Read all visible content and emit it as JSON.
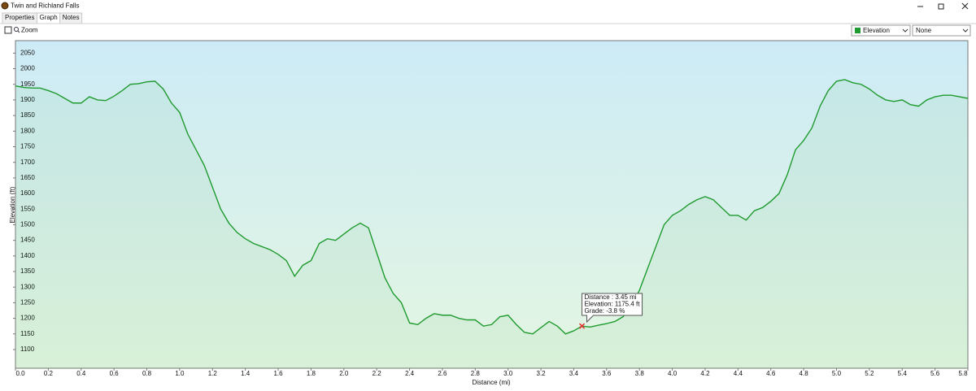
{
  "window": {
    "title": "Twin and Richland Falls",
    "tabs": [
      "Properties",
      "Graph",
      "Notes"
    ],
    "active_tab": 1
  },
  "toolbar": {
    "zoom": "Zoom",
    "series_select": "Elevation",
    "secondary_select": "None"
  },
  "chart_data": {
    "type": "line",
    "x_label": "Distance  (mi)",
    "y_label": "Elevation (ft)",
    "color": "#1f9a2e",
    "x": [
      0,
      0.05,
      0.1,
      0.15,
      0.2,
      0.25,
      0.3,
      0.35,
      0.4,
      0.45,
      0.5,
      0.55,
      0.6,
      0.65,
      0.7,
      0.75,
      0.8,
      0.85,
      0.9,
      0.95,
      1.0,
      1.05,
      1.1,
      1.15,
      1.2,
      1.25,
      1.3,
      1.35,
      1.4,
      1.45,
      1.5,
      1.55,
      1.6,
      1.65,
      1.7,
      1.75,
      1.8,
      1.85,
      1.9,
      1.95,
      2.0,
      2.05,
      2.1,
      2.15,
      2.2,
      2.25,
      2.3,
      2.35,
      2.4,
      2.45,
      2.5,
      2.55,
      2.6,
      2.65,
      2.7,
      2.75,
      2.8,
      2.85,
      2.9,
      2.95,
      3.0,
      3.05,
      3.1,
      3.15,
      3.2,
      3.25,
      3.3,
      3.35,
      3.4,
      3.45,
      3.5,
      3.55,
      3.6,
      3.65,
      3.7,
      3.75,
      3.8,
      3.85,
      3.9,
      3.95,
      4.0,
      4.05,
      4.1,
      4.15,
      4.2,
      4.25,
      4.3,
      4.35,
      4.4,
      4.45,
      4.5,
      4.55,
      4.6,
      4.65,
      4.7,
      4.75,
      4.8,
      4.85,
      4.9,
      4.95,
      5.0,
      5.05,
      5.1,
      5.15,
      5.2,
      5.25,
      5.3,
      5.35,
      5.4,
      5.45,
      5.5,
      5.55,
      5.6,
      5.65,
      5.7,
      5.75,
      5.8
    ],
    "values": [
      1945,
      1940,
      1938,
      1938,
      1930,
      1920,
      1905,
      1890,
      1890,
      1910,
      1900,
      1898,
      1912,
      1930,
      1950,
      1952,
      1958,
      1960,
      1935,
      1890,
      1860,
      1790,
      1740,
      1690,
      1620,
      1550,
      1505,
      1475,
      1455,
      1440,
      1430,
      1420,
      1405,
      1385,
      1335,
      1370,
      1385,
      1440,
      1455,
      1450,
      1470,
      1490,
      1505,
      1490,
      1410,
      1330,
      1280,
      1250,
      1185,
      1180,
      1200,
      1215,
      1210,
      1210,
      1200,
      1195,
      1195,
      1175,
      1180,
      1205,
      1210,
      1180,
      1155,
      1150,
      1170,
      1190,
      1175,
      1150,
      1160,
      1175,
      1172,
      1178,
      1183,
      1190,
      1205,
      1240,
      1290,
      1360,
      1430,
      1500,
      1530,
      1545,
      1565,
      1580,
      1590,
      1580,
      1555,
      1530,
      1530,
      1515,
      1545,
      1555,
      1575,
      1600,
      1660,
      1740,
      1770,
      1810,
      1880,
      1930,
      1960,
      1965,
      1955,
      1950,
      1935,
      1915,
      1900,
      1895,
      1900,
      1885,
      1880,
      1900,
      1910,
      1915,
      1915,
      1910,
      1905
    ],
    "xlim": [
      0,
      5.8
    ],
    "ylim": [
      1040,
      2090
    ],
    "xticks": [
      {
        "value": 0,
        "label": "0.0"
      },
      0.2,
      0.4,
      0.6,
      0.8,
      {
        "value": 1,
        "label": "1.0"
      },
      1.2,
      1.4,
      1.6,
      1.8,
      {
        "value": 2,
        "label": "2.0"
      },
      2.2,
      2.4,
      2.6,
      2.8,
      {
        "value": 3,
        "label": "3.0"
      },
      3.2,
      3.4,
      3.6,
      3.8,
      {
        "value": 4,
        "label": "4.0"
      },
      4.2,
      4.4,
      4.6,
      4.8,
      {
        "value": 5,
        "label": "5.0"
      },
      5.2,
      5.4,
      5.6,
      5.8
    ],
    "yticks": [
      1100,
      1150,
      1200,
      1250,
      1300,
      1350,
      1400,
      1450,
      1500,
      1550,
      1600,
      1650,
      1700,
      1750,
      1800,
      1850,
      1900,
      1950,
      2000,
      2050
    ],
    "grid": false,
    "marker": {
      "x": 3.45,
      "y": 1175.4,
      "color": "#e0302a"
    },
    "annotations": [
      "Distance : 3.45 mi",
      "Elevation: 1175.4 ft",
      "Grade: -3.8 %"
    ]
  }
}
